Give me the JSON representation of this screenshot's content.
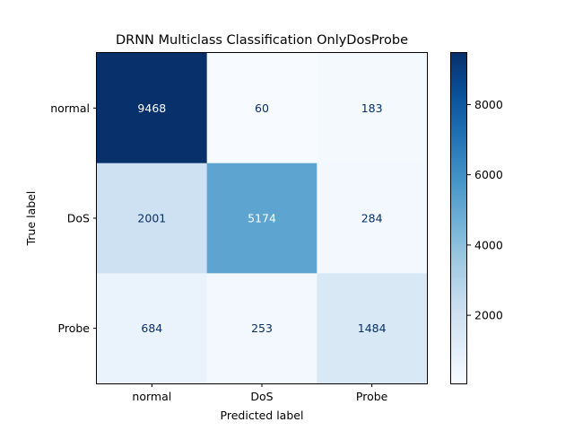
{
  "chart_data": {
    "type": "heatmap",
    "title": "DRNN Multiclass Classification OnlyDosProbe",
    "xlabel": "Predicted label",
    "ylabel": "True label",
    "x_categories": [
      "normal",
      "DoS",
      "Probe"
    ],
    "y_categories": [
      "normal",
      "DoS",
      "Probe"
    ],
    "values": [
      [
        9468,
        60,
        183
      ],
      [
        2001,
        5174,
        284
      ],
      [
        684,
        253,
        1484
      ]
    ],
    "colormap": "Blues",
    "colorbar": {
      "min": 60,
      "max": 9468,
      "ticks": [
        2000,
        4000,
        6000,
        8000
      ],
      "tick_labels": [
        "2000",
        "4000",
        "6000",
        "8000"
      ]
    },
    "text_colors": {
      "light": "#ffffff",
      "dark": "#08306b"
    }
  }
}
